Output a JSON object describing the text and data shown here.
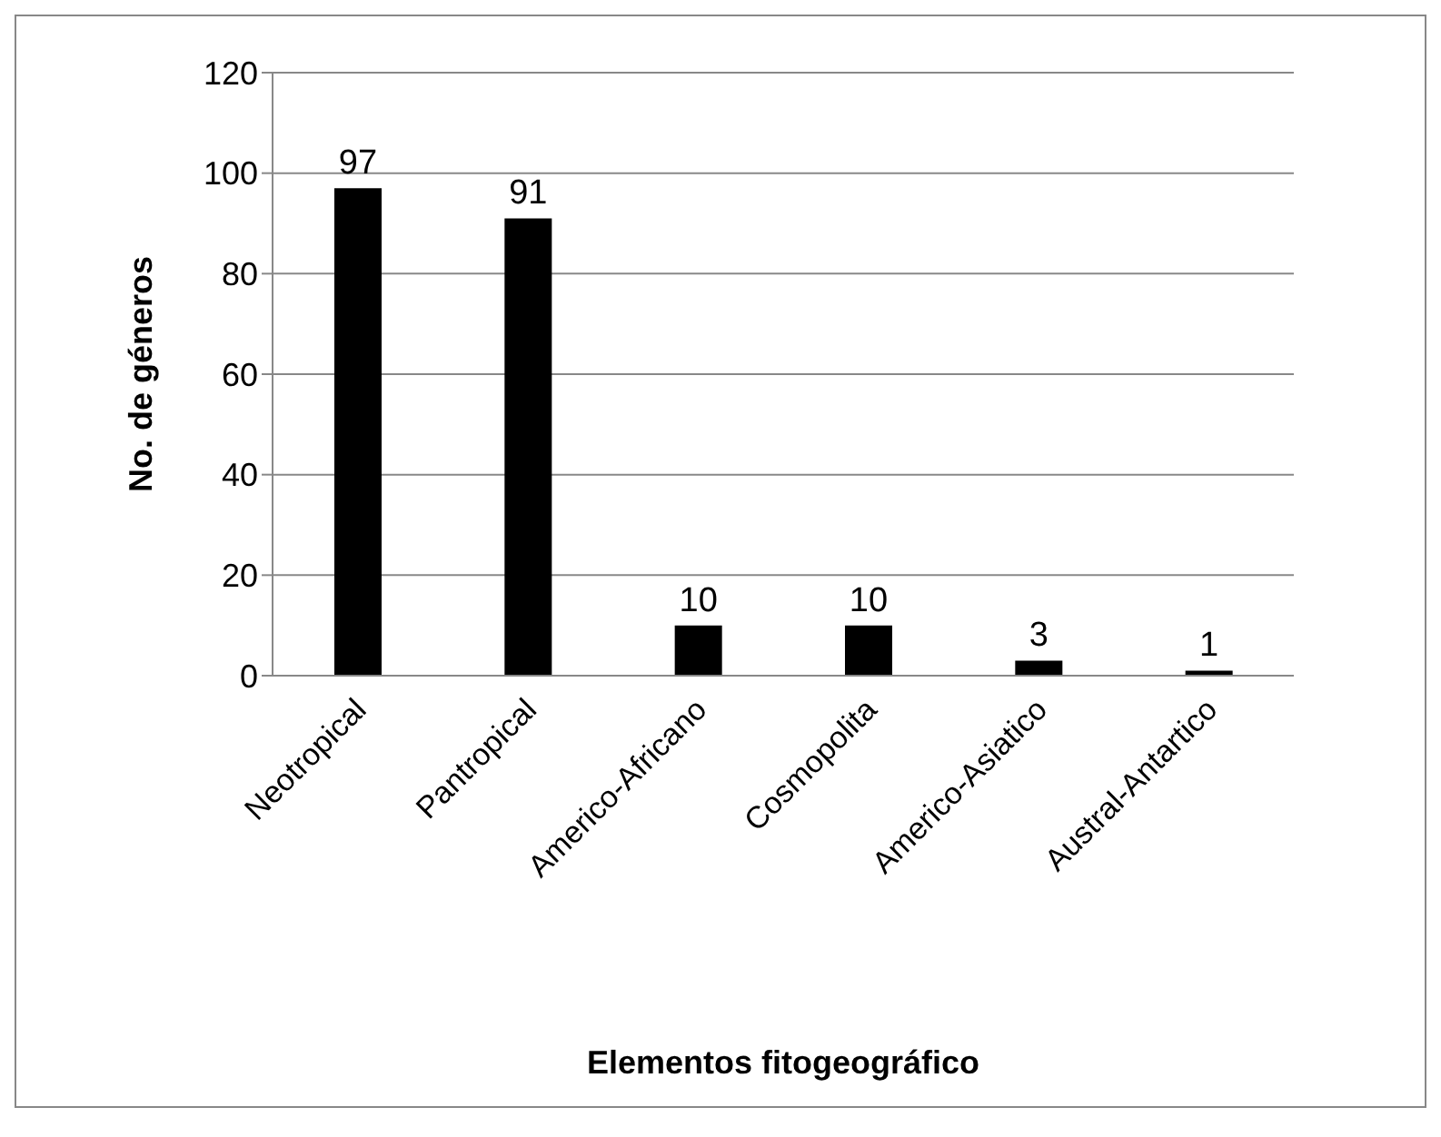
{
  "chart_data": {
    "type": "bar",
    "xlabel": "Elementos fitogeográfico",
    "ylabel": "No. de géneros",
    "categories": [
      "Neotropical",
      "Pantropical",
      "Americo-Africano",
      "Cosmopolita",
      "Americo-Asiatico",
      "Austral-Antartico"
    ],
    "values": [
      97,
      91,
      10,
      10,
      3,
      1
    ],
    "color": "#000000",
    "ylim": [
      0,
      120
    ],
    "yticks": [
      0,
      20,
      40,
      60,
      80,
      100,
      120
    ],
    "grid": "y",
    "data_labels": true,
    "legend": false
  }
}
